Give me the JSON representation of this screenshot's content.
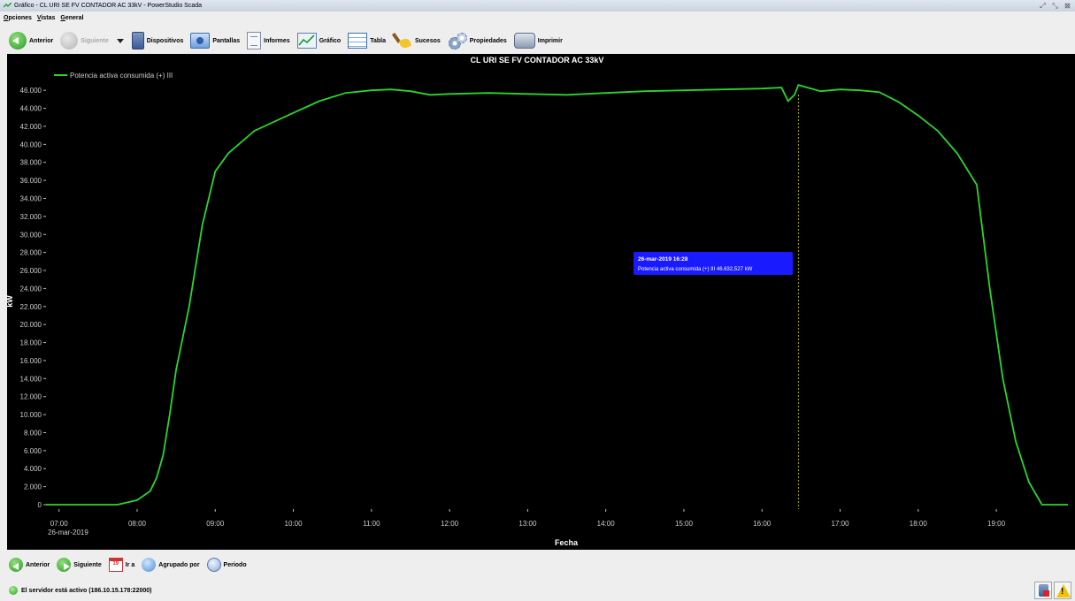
{
  "window": {
    "title": "Gráfico - CL URI SE FV CONTADOR AC 33kV - PowerStudio Scada",
    "controls": [
      "⤢",
      "⤡",
      "⊠"
    ]
  },
  "menu": [
    "Opciones",
    "Vistas",
    "General"
  ],
  "toolbar": {
    "back": "Anterior",
    "next": "Siguiente",
    "devices": "Dispositivos",
    "screens": "Pantallas",
    "reports": "Informes",
    "chart": "Gráfico",
    "table": "Tabla",
    "events": "Sucesos",
    "properties": "Propiedades",
    "print": "Imprimir"
  },
  "colors": {
    "background": "#000000",
    "series": "#2bd62b",
    "tooltip": "#1a1aff",
    "cursor": "#a6a600"
  },
  "chart_data": {
    "type": "line",
    "title": "CL URI SE FV CONTADOR AC 33kV",
    "xlabel": "Fecha",
    "ylabel": "kW",
    "date_label": "26-mar-2019",
    "x_ticks": [
      "07:00",
      "08:00",
      "09:00",
      "10:00",
      "11:00",
      "12:00",
      "13:00",
      "14:00",
      "15:00",
      "16:00",
      "17:00",
      "18:00",
      "19:00"
    ],
    "xlim": [
      "06:50",
      "19:55"
    ],
    "ylim": [
      0,
      47000
    ],
    "y_ticks": [
      "0",
      "2.000",
      "4.000",
      "6.000",
      "8.000",
      "10.000",
      "12.000",
      "14.000",
      "16.000",
      "18.000",
      "20.000",
      "22.000",
      "24.000",
      "26.000",
      "28.000",
      "30.000",
      "32.000",
      "34.000",
      "36.000",
      "38.000",
      "40.000",
      "42.000",
      "44.000",
      "46.000"
    ],
    "legend": "top-left",
    "grid": false,
    "series": [
      {
        "name": "Potencia activa consumida (+) III",
        "points": [
          [
            "06:50",
            0
          ],
          [
            "07:45",
            0
          ],
          [
            "08:00",
            500
          ],
          [
            "08:10",
            1500
          ],
          [
            "08:15",
            3000
          ],
          [
            "08:20",
            5500
          ],
          [
            "08:25",
            10000
          ],
          [
            "08:30",
            15000
          ],
          [
            "08:40",
            22000
          ],
          [
            "08:50",
            31000
          ],
          [
            "09:00",
            37000
          ],
          [
            "09:10",
            39000
          ],
          [
            "09:30",
            41500
          ],
          [
            "10:00",
            43500
          ],
          [
            "10:20",
            44800
          ],
          [
            "10:40",
            45700
          ],
          [
            "11:00",
            46000
          ],
          [
            "11:15",
            46100
          ],
          [
            "11:30",
            45900
          ],
          [
            "11:45",
            45500
          ],
          [
            "12:00",
            45600
          ],
          [
            "12:30",
            45700
          ],
          [
            "13:00",
            45600
          ],
          [
            "13:30",
            45500
          ],
          [
            "14:00",
            45700
          ],
          [
            "14:30",
            45900
          ],
          [
            "15:00",
            46000
          ],
          [
            "15:30",
            46100
          ],
          [
            "16:00",
            46200
          ],
          [
            "16:15",
            46300
          ],
          [
            "16:20",
            44800
          ],
          [
            "16:25",
            45500
          ],
          [
            "16:28",
            46600
          ],
          [
            "16:35",
            46300
          ],
          [
            "16:45",
            45900
          ],
          [
            "17:00",
            46100
          ],
          [
            "17:15",
            46000
          ],
          [
            "17:30",
            45800
          ],
          [
            "17:45",
            44700
          ],
          [
            "18:00",
            43200
          ],
          [
            "18:15",
            41500
          ],
          [
            "18:30",
            39000
          ],
          [
            "18:45",
            35500
          ],
          [
            "18:55",
            24000
          ],
          [
            "19:05",
            14000
          ],
          [
            "19:15",
            7000
          ],
          [
            "19:25",
            2500
          ],
          [
            "19:35",
            0
          ],
          [
            "19:55",
            0
          ]
        ]
      }
    ],
    "cursor": {
      "time": "16:28",
      "tooltip_line1": "26-mar-2019 16:28",
      "tooltip_line2": "Potencia activa consumida (+) III 46.632,527  kW"
    }
  },
  "bottombar": {
    "back": "Anterior",
    "next": "Siguiente",
    "goto": "Ir a",
    "goto_day": "19",
    "group_by": "Agrupado por",
    "period": "Periodo"
  },
  "status": {
    "text": "El servidor está activo (186.10.15.178:22000)"
  }
}
